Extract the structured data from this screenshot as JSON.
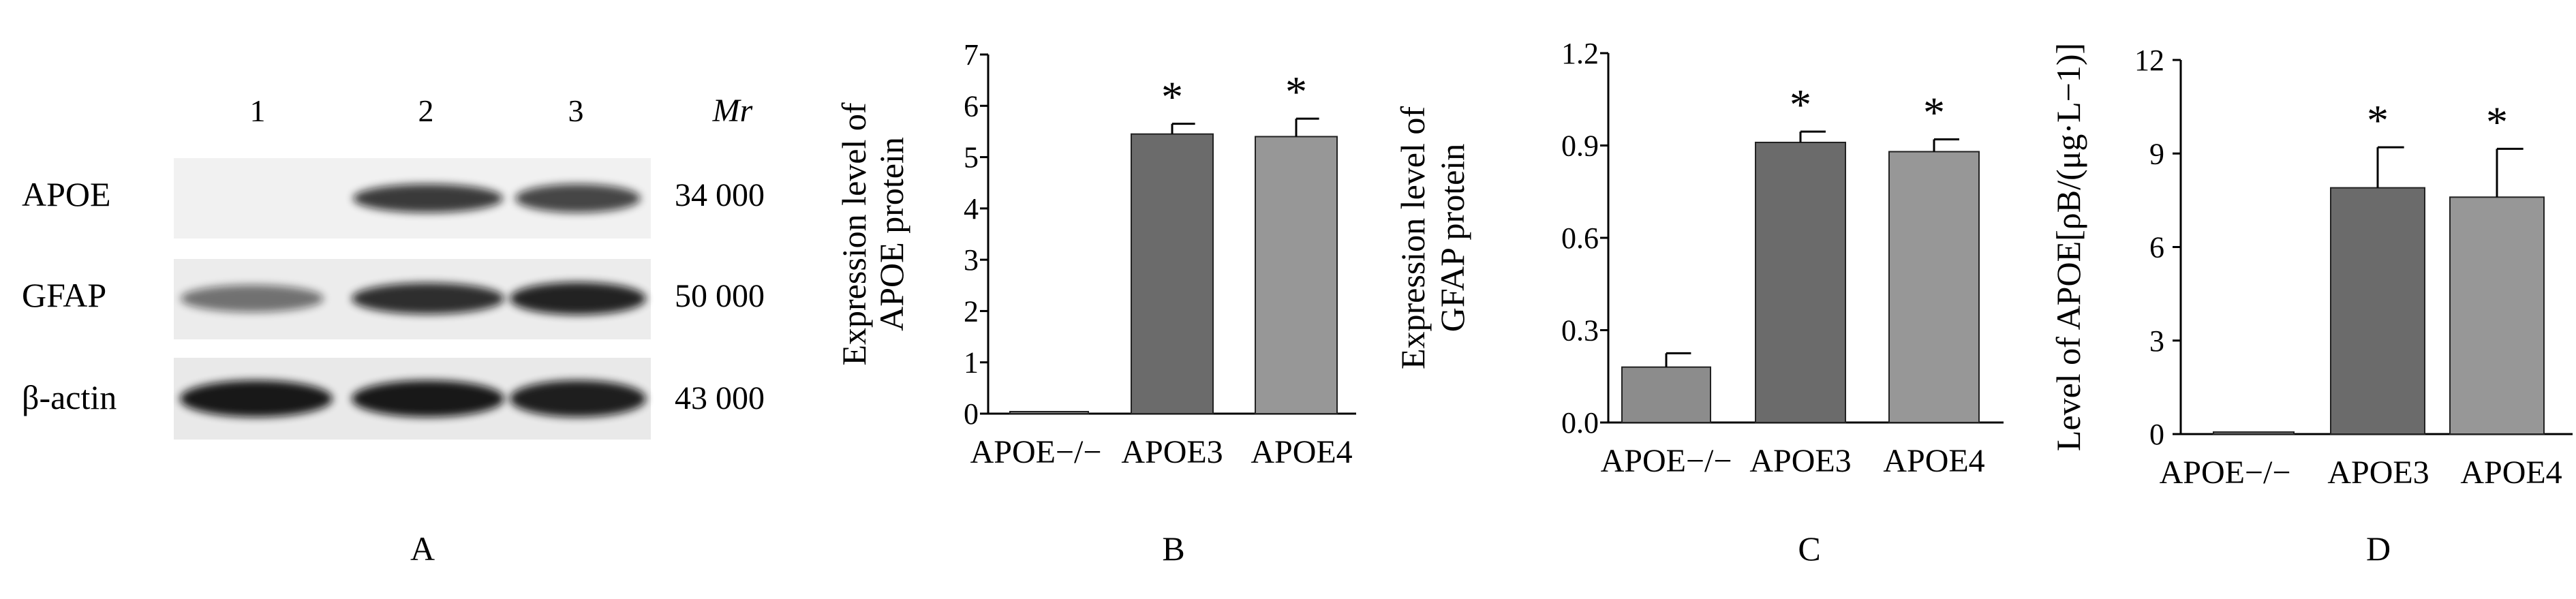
{
  "panel_a": {
    "lane_labels": [
      "1",
      "2",
      "3"
    ],
    "mr_header": "Mr",
    "rows": [
      {
        "name": "APOE",
        "mr": "34 000",
        "intensity": [
          0.0,
          0.8,
          0.75
        ]
      },
      {
        "name": "GFAP",
        "mr": "50 000",
        "intensity": [
          0.55,
          0.85,
          0.9
        ]
      },
      {
        "name": "β-actin",
        "mr": "43 000",
        "intensity": [
          0.95,
          0.95,
          0.92
        ]
      }
    ],
    "letter": "A"
  },
  "colors": {
    "bar_apoe_null": "#8c8c8c",
    "bar_apoe3": "#6b6b6b",
    "bar_apoe4": "#979797",
    "axis": "#000000"
  },
  "chart_data": [
    {
      "type": "bar",
      "panel": "B",
      "categories": [
        "APOE−/−",
        "APOE3",
        "APOE4"
      ],
      "values": [
        0.02,
        5.45,
        5.4
      ],
      "errors": [
        0,
        0.2,
        0.35
      ],
      "significance": [
        "",
        "*",
        "*"
      ],
      "ylabel_lines": [
        "Expression level of",
        "APOE protein"
      ],
      "ylim": [
        0,
        7
      ],
      "yticks": [
        "0",
        "1",
        "2",
        "3",
        "4",
        "5",
        "6",
        "7"
      ]
    },
    {
      "type": "bar",
      "panel": "C",
      "categories": [
        "APOE−/−",
        "APOE3",
        "APOE4"
      ],
      "values": [
        0.18,
        0.91,
        0.88
      ],
      "errors": [
        0.045,
        0.035,
        0.04
      ],
      "significance": [
        "",
        "*",
        "*"
      ],
      "ylabel_lines": [
        "Expression level of",
        "GFAP protein"
      ],
      "ylim": [
        0,
        1.2
      ],
      "yticks": [
        "0.0",
        "0.3",
        "0.6",
        "0.9",
        "1.2"
      ]
    },
    {
      "type": "bar",
      "panel": "D",
      "categories": [
        "APOE−/−",
        "APOE3",
        "APOE4"
      ],
      "values": [
        0.05,
        7.9,
        7.6
      ],
      "errors": [
        0,
        1.3,
        1.55
      ],
      "significance": [
        "",
        "*",
        "*"
      ],
      "ylabel_lines": [
        "Level of APOE[ρB/(μg·L−1)]"
      ],
      "ylim": [
        0,
        12
      ],
      "yticks": [
        "0",
        "3",
        "6",
        "9",
        "12"
      ]
    }
  ]
}
